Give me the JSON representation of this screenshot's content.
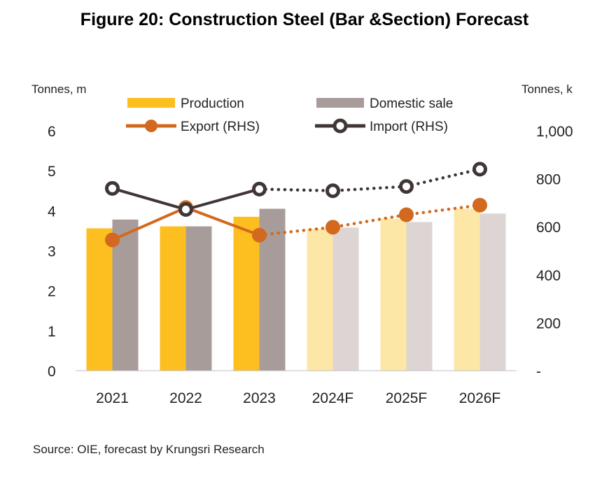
{
  "title": "Figure 20: Construction Steel (Bar &Section) Forecast",
  "source": "Source: OIE,  forecast by Krungsri Research",
  "chart_data": {
    "type": "bar",
    "categories": [
      "2021",
      "2022",
      "2023",
      "2024F",
      "2025F",
      "2026F"
    ],
    "forecast_from_index": 3,
    "left_axis": {
      "label": "Tonnes, m",
      "range": [
        0,
        6
      ],
      "ticks": [
        "0",
        "1",
        "2",
        "3",
        "4",
        "5",
        "6"
      ]
    },
    "right_axis": {
      "label": "Tonnes, k",
      "range": [
        0,
        1000
      ],
      "ticks": [
        "-",
        "200",
        "400",
        "600",
        "800",
        "1,000"
      ]
    },
    "bar_series": [
      {
        "name": "Production",
        "axis": "left",
        "values": [
          3.56,
          3.61,
          3.85,
          3.55,
          3.8,
          4.05
        ],
        "color": "#FDBF1F",
        "forecast_color": "#FDE7A7"
      },
      {
        "name": "Domestic sale",
        "axis": "left",
        "values": [
          3.78,
          3.61,
          4.05,
          3.58,
          3.72,
          3.93
        ],
        "color": "#A89C9A",
        "forecast_color": "#DDD5D3"
      }
    ],
    "line_series": [
      {
        "name": "Export (RHS)",
        "axis": "right",
        "values": [
          545,
          680,
          565,
          598,
          650,
          690
        ],
        "color": "#D2691E",
        "marker": "filled-circle"
      },
      {
        "name": "Import (RHS)",
        "axis": "right",
        "values": [
          760,
          672,
          757,
          750,
          768,
          840
        ],
        "color": "#3F3635",
        "marker": "hollow-circle"
      }
    ],
    "legend": {
      "position": "top"
    },
    "grid": false
  }
}
